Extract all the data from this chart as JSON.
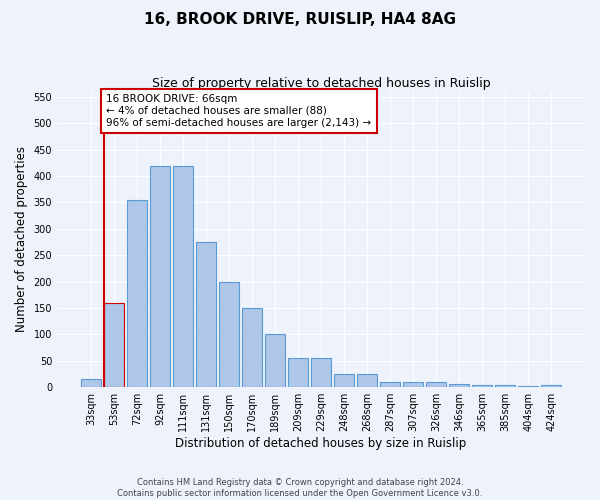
{
  "title": "16, BROOK DRIVE, RUISLIP, HA4 8AG",
  "subtitle": "Size of property relative to detached houses in Ruislip",
  "xlabel": "Distribution of detached houses by size in Ruislip",
  "ylabel": "Number of detached properties",
  "categories": [
    "33sqm",
    "53sqm",
    "72sqm",
    "92sqm",
    "111sqm",
    "131sqm",
    "150sqm",
    "170sqm",
    "189sqm",
    "209sqm",
    "229sqm",
    "248sqm",
    "268sqm",
    "287sqm",
    "307sqm",
    "326sqm",
    "346sqm",
    "365sqm",
    "385sqm",
    "404sqm",
    "424sqm"
  ],
  "bar_heights": [
    15,
    160,
    355,
    420,
    420,
    275,
    200,
    150,
    100,
    55,
    55,
    25,
    25,
    10,
    10,
    10,
    7,
    5,
    5,
    2,
    5
  ],
  "bar_color": "#aec6e8",
  "bar_edge_color": "#5b9bd5",
  "highlight_bar_index": 1,
  "highlight_bar_edge_color": "#cc0000",
  "vline_color": "#cc0000",
  "annotation_text_line1": "16 BROOK DRIVE: 66sqm",
  "annotation_text_line2": "← 4% of detached houses are smaller (88)",
  "annotation_text_line3": "96% of semi-detached houses are larger (2,143) →",
  "annotation_box_facecolor": "#ffffff",
  "annotation_box_edgecolor": "#cc0000",
  "ylim_max": 560,
  "yticks": [
    0,
    50,
    100,
    150,
    200,
    250,
    300,
    350,
    400,
    450,
    500,
    550
  ],
  "footer_line1": "Contains HM Land Registry data © Crown copyright and database right 2024.",
  "footer_line2": "Contains public sector information licensed under the Open Government Licence v3.0.",
  "background_color": "#eef2fb",
  "grid_color": "#ffffff",
  "title_fontsize": 11,
  "subtitle_fontsize": 9,
  "axis_label_fontsize": 8.5,
  "tick_fontsize": 7,
  "annotation_fontsize": 7.5,
  "footer_fontsize": 6
}
